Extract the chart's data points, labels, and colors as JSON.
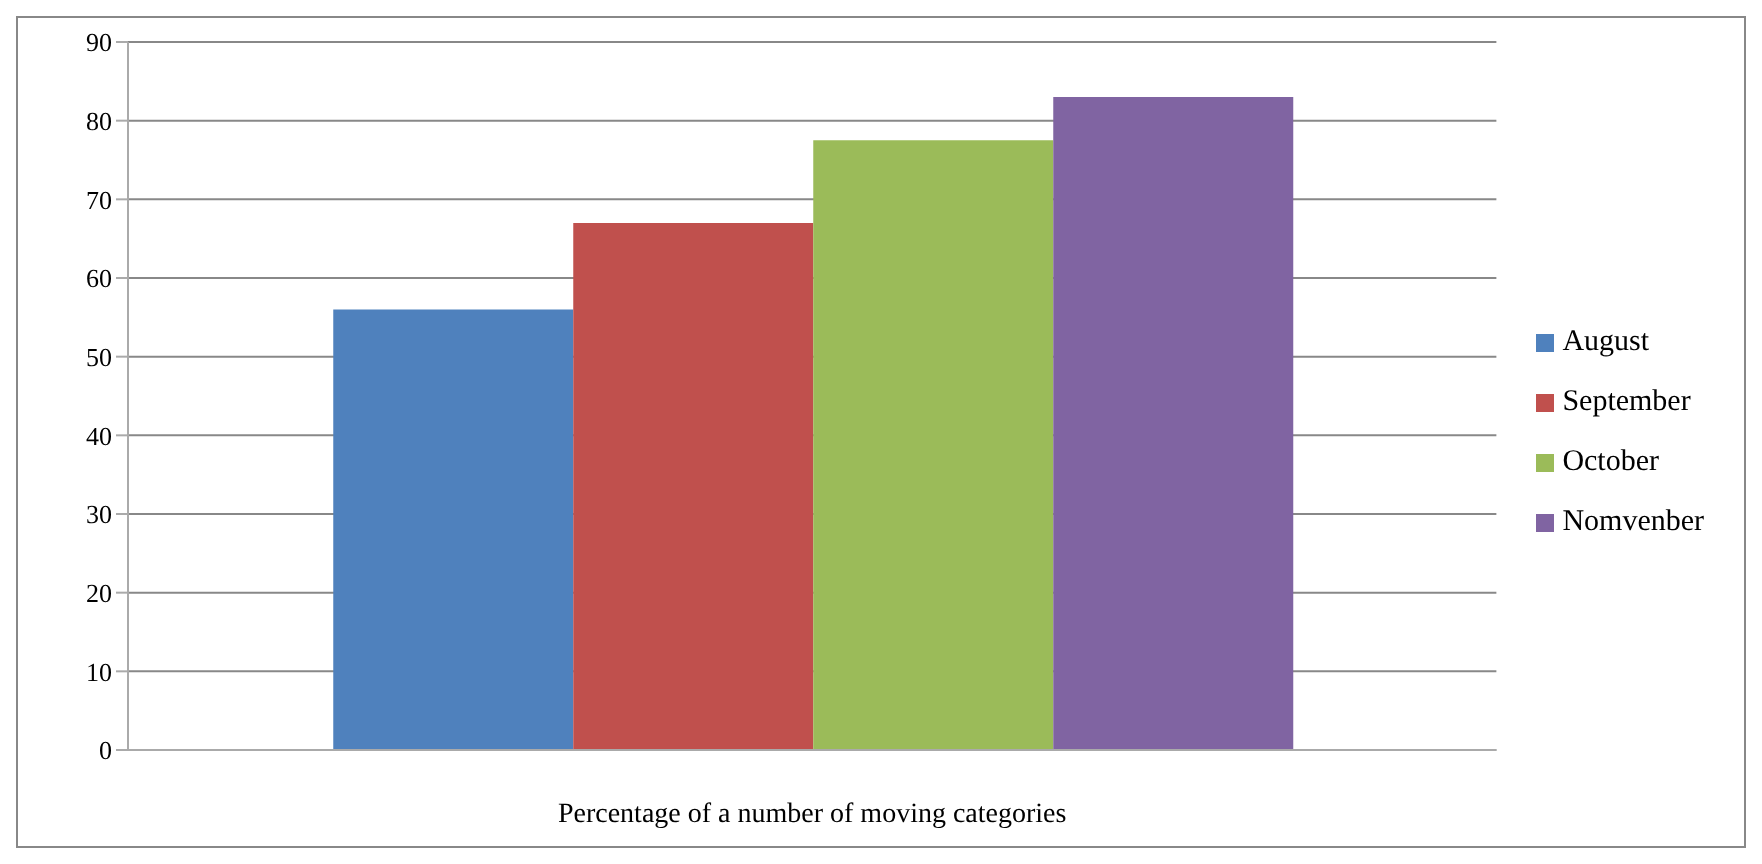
{
  "chart_data": {
    "type": "bar",
    "xlabel": "Percentage of a number of moving categories",
    "categories": [
      null
    ],
    "series": [
      {
        "name": "August",
        "color": "#4f81bd",
        "values": [
          56
        ]
      },
      {
        "name": "September",
        "color": "#c0504d",
        "values": [
          67
        ]
      },
      {
        "name": "October",
        "color": "#9bbb59",
        "values": [
          77.5
        ]
      },
      {
        "name": "Nomvenber",
        "color": "#8064a2",
        "values": [
          83
        ]
      }
    ],
    "ylim": [
      0,
      90
    ],
    "yticks": [
      0,
      10,
      20,
      30,
      40,
      50,
      60,
      70,
      80,
      90
    ],
    "grid": "y",
    "legend": "right"
  }
}
